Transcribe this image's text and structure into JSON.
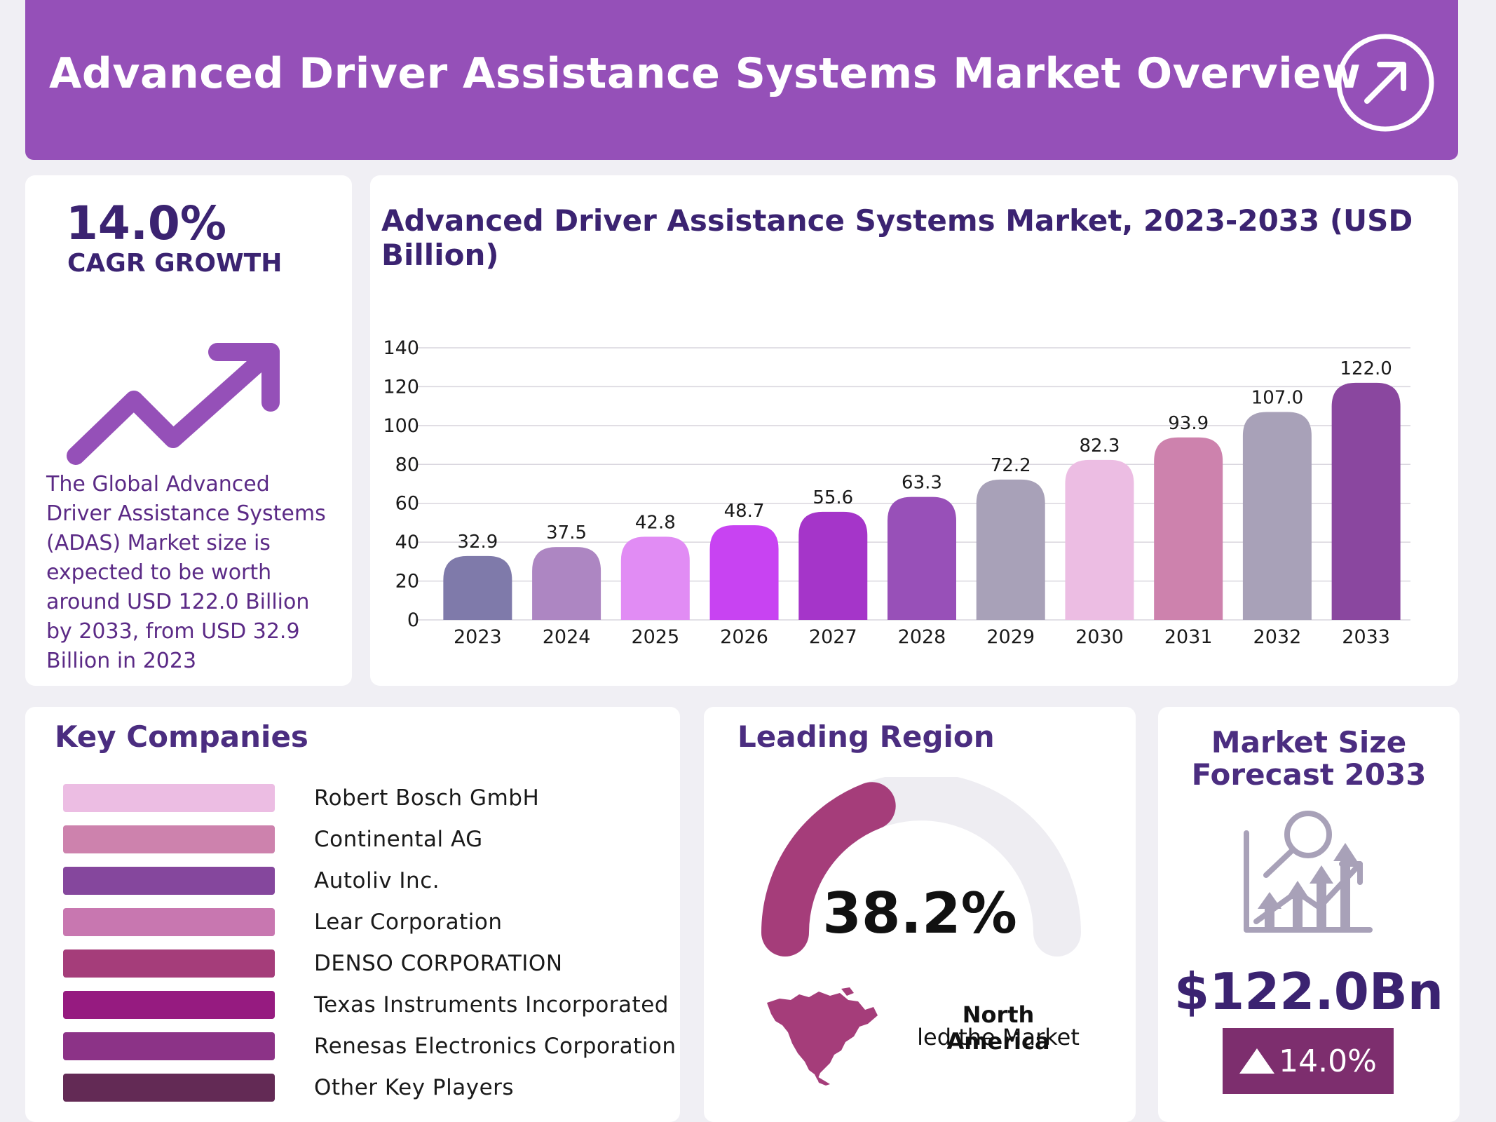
{
  "header": {
    "title": "Advanced Driver Assistance Systems Market Overview"
  },
  "cagr": {
    "value": "14.0%",
    "label": "CAGR GROWTH",
    "description": "The Global Advanced Driver Assistance Systems (ADAS) Market size is expected to be worth around USD 122.0 Billion by 2033, from USD 32.9 Billion in 2023"
  },
  "chart_data": {
    "type": "bar",
    "title": "Advanced Driver Assistance Systems Market, 2023-2033 (USD Billion)",
    "xlabel": "",
    "ylabel": "",
    "categories": [
      "2023",
      "2024",
      "2025",
      "2026",
      "2027",
      "2028",
      "2029",
      "2030",
      "2031",
      "2032",
      "2033"
    ],
    "values": [
      32.9,
      37.5,
      42.8,
      48.7,
      55.6,
      63.3,
      72.2,
      82.3,
      93.9,
      107.0,
      122.0
    ],
    "value_labels": [
      "32.9",
      "37.5",
      "42.8",
      "48.7",
      "55.6",
      "63.3",
      "72.2",
      "82.3",
      "93.9",
      "107.0",
      "122.0"
    ],
    "colors": [
      "#7f7aaa",
      "#ad86c2",
      "#e18cf4",
      "#c843f2",
      "#a535c9",
      "#9850b8",
      "#a8a1b8",
      "#ecbde3",
      "#cd82ad",
      "#a8a1b8",
      "#8a479f"
    ],
    "ylim": [
      0,
      140
    ],
    "yticks": [
      0,
      20,
      40,
      60,
      80,
      100,
      120,
      140
    ],
    "grid": true
  },
  "companies": {
    "title": "Key Companies",
    "items": [
      {
        "name": "Robert Bosch GmbH",
        "color": "#ecbde3"
      },
      {
        "name": "Continental AG",
        "color": "#cd82ad"
      },
      {
        "name": "Autoliv Inc.",
        "color": "#85479d"
      },
      {
        "name": "Lear Corporation",
        "color": "#c877b0"
      },
      {
        "name": "DENSO CORPORATION",
        "color": "#a53d7a"
      },
      {
        "name": "Texas Instruments Incorporated",
        "color": "#961b80"
      },
      {
        "name": "Renesas Electronics Corporation",
        "color": "#8c3387"
      },
      {
        "name": "Other Key Players",
        "color": "#632a55"
      }
    ]
  },
  "region": {
    "title": "Leading Region",
    "share": "38.2%",
    "share_fraction": 0.382,
    "name": "North America",
    "subtitle": "led the Market",
    "accent": "#a53d7a",
    "track": "#eeedf2"
  },
  "forecast": {
    "title_line1": "Market Size",
    "title_line2": "Forecast 2033",
    "value": "$122.0Bn",
    "growth": "14.0%",
    "icon": "growth-chart-magnifier-icon"
  }
}
